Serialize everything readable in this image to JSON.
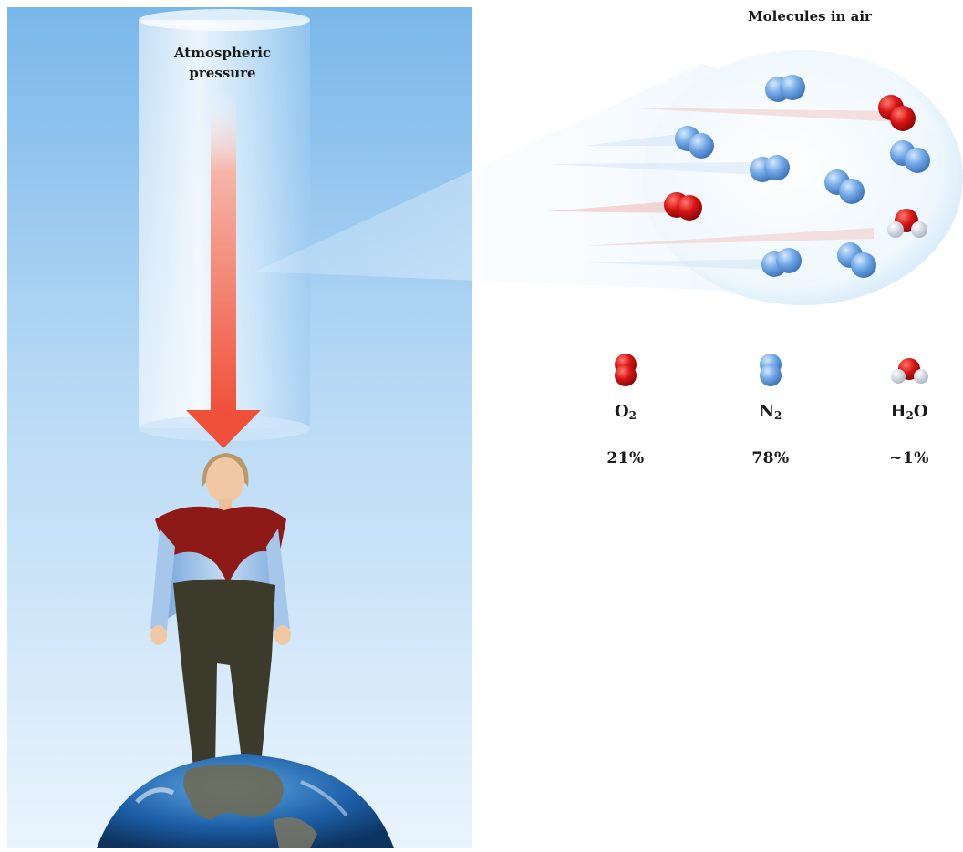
{
  "pressure_label": {
    "line1": "Atmospheric",
    "line2": "pressure"
  },
  "molecules": {
    "title": "Molecules in air",
    "legend": [
      {
        "id": "o2",
        "formula_main": "O",
        "formula_sub": "2",
        "formula_tail": "",
        "percent": "21%",
        "color": "#d81414"
      },
      {
        "id": "n2",
        "formula_main": "N",
        "formula_sub": "2",
        "formula_tail": "",
        "percent": "78%",
        "color": "#6fa6e6"
      },
      {
        "id": "h2o",
        "formula_main": "H",
        "formula_sub": "2",
        "formula_tail": "O",
        "percent": "~1%",
        "color": "#d81414"
      }
    ]
  },
  "colors": {
    "sky_top": "#79b7ea",
    "sky_bottom": "#e9f4fd",
    "arrow": "#f0503a",
    "oxygen": "#d81414",
    "nitrogen": "#6fa6e6",
    "hydrogen": "#eef2f7"
  }
}
